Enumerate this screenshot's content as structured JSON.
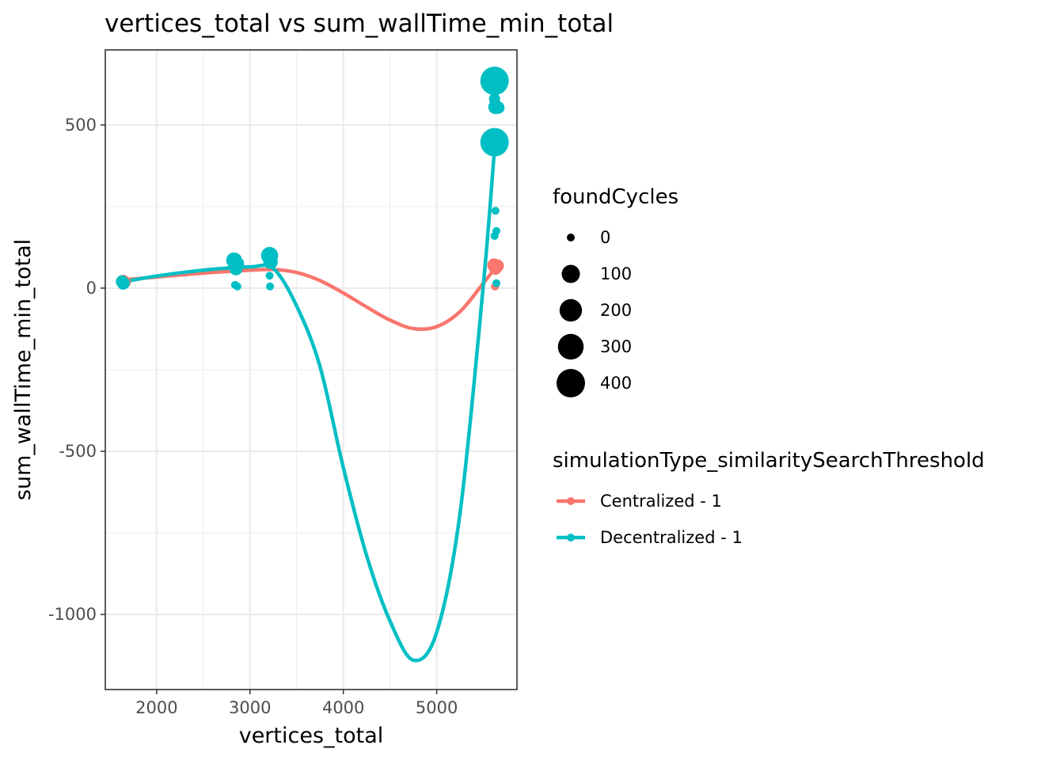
{
  "chart_data": {
    "type": "scatter",
    "title": "vertices_total  vs  sum_wallTime_min_total",
    "xlabel": "vertices_total",
    "ylabel": "sum_wallTime_min_total",
    "xlim": [
      1450,
      5860
    ],
    "ylim": [
      -1230,
      730
    ],
    "x_ticks": [
      2000,
      3000,
      4000,
      5000
    ],
    "y_ticks": [
      -1000,
      -500,
      0,
      500
    ],
    "x_tick_labels": [
      "2000",
      "3000",
      "4000",
      "5000"
    ],
    "y_tick_labels": [
      "-1000",
      "-500",
      "0",
      "500"
    ],
    "grid": true,
    "legend_placement": "right",
    "size_legend": {
      "title": "foundCycles",
      "values": [
        0,
        100,
        200,
        300,
        400
      ],
      "labels": [
        "0",
        "100",
        "200",
        "300",
        "400"
      ]
    },
    "color_legend": {
      "title": "simulationType_similaritySearchThreshold",
      "entries": [
        "Centralized - 1",
        "Decentralized - 1"
      ]
    },
    "colors": {
      "Centralized - 1": "#F8766D",
      "Decentralized - 1": "#00BFC4"
    },
    "series": [
      {
        "name": "Centralized - 1",
        "points": [
          {
            "x": 1640,
            "y": 20,
            "size": 30
          },
          {
            "x": 1660,
            "y": 18,
            "size": 15
          },
          {
            "x": 1630,
            "y": 22,
            "size": 10
          },
          {
            "x": 5615,
            "y": 70,
            "size": 30
          },
          {
            "x": 5650,
            "y": 68,
            "size": 25
          },
          {
            "x": 5630,
            "y": 60,
            "size": 20
          },
          {
            "x": 5625,
            "y": 5,
            "size": 0
          }
        ],
        "fit_x": [
          1620,
          2000,
          2500,
          3000,
          3250,
          3500,
          3750,
          4000,
          4250,
          4500,
          4750,
          5000,
          5250,
          5500,
          5650
        ],
        "fit_y": [
          25,
          34,
          46,
          55,
          57,
          48,
          23,
          -15,
          -58,
          -98,
          -124,
          -118,
          -72,
          15,
          70
        ]
      },
      {
        "name": "Decentralized - 1",
        "points": [
          {
            "x": 1630,
            "y": 20,
            "size": 20
          },
          {
            "x": 1650,
            "y": 15,
            "size": 15
          },
          {
            "x": 1640,
            "y": 12,
            "size": 10
          },
          {
            "x": 2830,
            "y": 85,
            "size": 60
          },
          {
            "x": 2860,
            "y": 75,
            "size": 40
          },
          {
            "x": 2850,
            "y": 60,
            "size": 30
          },
          {
            "x": 2840,
            "y": 10,
            "size": 0
          },
          {
            "x": 2865,
            "y": 5,
            "size": 0
          },
          {
            "x": 3210,
            "y": 100,
            "size": 80
          },
          {
            "x": 3220,
            "y": 80,
            "size": 40
          },
          {
            "x": 3210,
            "y": 38,
            "size": 0
          },
          {
            "x": 3215,
            "y": 5,
            "size": 0
          },
          {
            "x": 5620,
            "y": 635,
            "size": 400
          },
          {
            "x": 5620,
            "y": 447,
            "size": 400
          },
          {
            "x": 5620,
            "y": 580,
            "size": 10
          },
          {
            "x": 5630,
            "y": 555,
            "size": 40
          },
          {
            "x": 5660,
            "y": 553,
            "size": 20
          },
          {
            "x": 5630,
            "y": 237,
            "size": 0
          },
          {
            "x": 5640,
            "y": 175,
            "size": 0
          },
          {
            "x": 5620,
            "y": 160,
            "size": 0
          },
          {
            "x": 5640,
            "y": 15,
            "size": 0
          }
        ],
        "fit_x": [
          1620,
          2000,
          2500,
          3000,
          3250,
          3500,
          3750,
          4000,
          4250,
          4500,
          4750,
          5000,
          5250,
          5500,
          5625
        ],
        "fit_y": [
          18,
          37,
          55,
          65,
          60,
          -55,
          -240,
          -550,
          -820,
          -1020,
          -1140,
          -1055,
          -690,
          10,
          447
        ]
      }
    ]
  }
}
